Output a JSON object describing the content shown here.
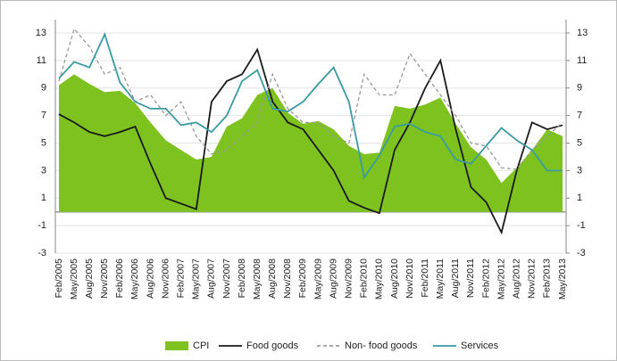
{
  "chart_data": {
    "type": "line",
    "categories": [
      "Feb/2005",
      "May/2005",
      "Aug/2005",
      "Nov/2005",
      "Feb/2006",
      "May/2006",
      "Aug/2006",
      "Nov/2006",
      "Feb/2007",
      "May/2007",
      "Aug/2007",
      "Nov/2007",
      "Feb/2008",
      "May/2008",
      "Aug/2008",
      "Nov/2008",
      "Feb/2009",
      "May/2009",
      "Aug/2009",
      "Nov/2009",
      "Feb/2010",
      "May/2010",
      "Aug/2010",
      "Nov/2010",
      "Feb/2011",
      "May/2011",
      "Aug/2011",
      "Nov/2011",
      "Feb/2012",
      "May/2012",
      "Aug/2012",
      "Nov/2012",
      "Feb/2013",
      "May/2013"
    ],
    "series": [
      {
        "name": "CPI",
        "color": "#7dc21e",
        "style": "area",
        "values": [
          9.2,
          10,
          9.3,
          8.7,
          8.8,
          7.9,
          6.5,
          5.2,
          4.5,
          3.8,
          4,
          6.2,
          6.8,
          8.5,
          9,
          7.2,
          6.4,
          6.6,
          6,
          4.8,
          4.2,
          4.3,
          7.7,
          7.5,
          7.8,
          8.3,
          6.4,
          4.7,
          3.8,
          2.1,
          3.2,
          4.5,
          6,
          5.5
        ]
      },
      {
        "name": "Food goods",
        "color": "#1a1a1a",
        "style": "solid",
        "values": [
          7.1,
          6.5,
          5.8,
          5.5,
          5.8,
          6.2,
          3.5,
          1,
          0.6,
          0.2,
          8,
          9.5,
          10,
          11.8,
          8,
          6.5,
          6,
          4.5,
          3,
          0.8,
          0.3,
          -0.1,
          4.5,
          6.5,
          9,
          11,
          6,
          1.8,
          0.7,
          -1.5,
          3,
          6.5,
          6,
          6.3
        ]
      },
      {
        "name": "Non- food goods",
        "color": "#999999",
        "style": "dashed",
        "values": [
          9.5,
          13.3,
          12,
          10,
          10.5,
          8,
          8.5,
          7,
          8,
          5.5,
          4.2,
          4.5,
          5.5,
          6.5,
          10,
          7.5,
          6.5,
          6.5,
          5.5,
          5,
          10,
          8.5,
          8.5,
          11.5,
          10,
          8.5,
          7,
          5,
          4.8,
          3.2,
          3.1,
          4.5,
          5.5,
          6.5
        ]
      },
      {
        "name": "Services",
        "color": "#3a9ba2",
        "style": "solid",
        "values": [
          9.7,
          10.9,
          10.5,
          12.9,
          9.4,
          8,
          7.5,
          7.5,
          6.3,
          6.5,
          5.8,
          7,
          9.5,
          10.3,
          7.5,
          7.3,
          8,
          9.3,
          10.5,
          8,
          2.5,
          4.1,
          6.2,
          6.4,
          5.8,
          5.5,
          3.8,
          3.5,
          4.8,
          6.1,
          5.2,
          4.5,
          3,
          3
        ]
      }
    ],
    "ylim": [
      -3,
      13
    ],
    "yticks": [
      -3,
      -1,
      1,
      3,
      5,
      7,
      9,
      11,
      13
    ],
    "y2lim": [
      -3,
      13
    ],
    "y2ticks": [
      -3,
      -1,
      1,
      3,
      5,
      7,
      9,
      11,
      13
    ],
    "grid": true,
    "legend": "bottom"
  }
}
